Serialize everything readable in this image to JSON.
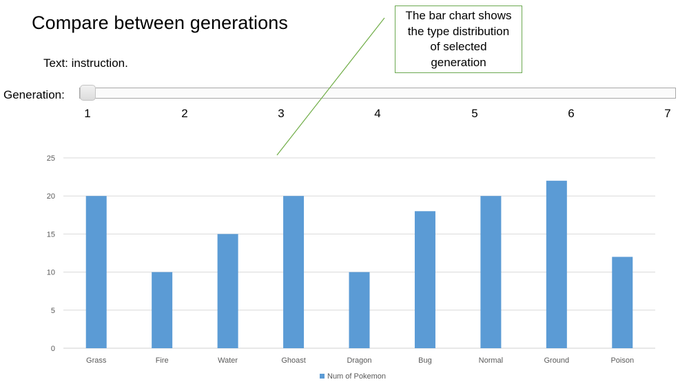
{
  "page": {
    "title": "Compare between generations",
    "instruction": "Text: instruction."
  },
  "slider": {
    "label": "Generation:",
    "value": 1,
    "ticks": [
      "1",
      "2",
      "3",
      "4",
      "5",
      "6",
      "7"
    ]
  },
  "callout": {
    "text": "The bar chart shows the type distribution of selected generation",
    "lines": [
      "The bar chart shows",
      "the type distribution",
      "of selected",
      "generation"
    ],
    "border_color": "#6aa84f"
  },
  "chart_data": {
    "type": "bar",
    "categories": [
      "Grass",
      "Fire",
      "Water",
      "Ghoast",
      "Dragon",
      "Bug",
      "Normal",
      "Ground",
      "Poison"
    ],
    "series": [
      {
        "name": "Num of Pokemon",
        "values": [
          20,
          10,
          15,
          20,
          10,
          18,
          20,
          22,
          12
        ],
        "color": "#5b9bd5"
      }
    ],
    "y_ticks": [
      "0",
      "5",
      "10",
      "15",
      "20",
      "25"
    ],
    "ylim": [
      0,
      25
    ],
    "grid": true,
    "legend_position": "bottom"
  }
}
